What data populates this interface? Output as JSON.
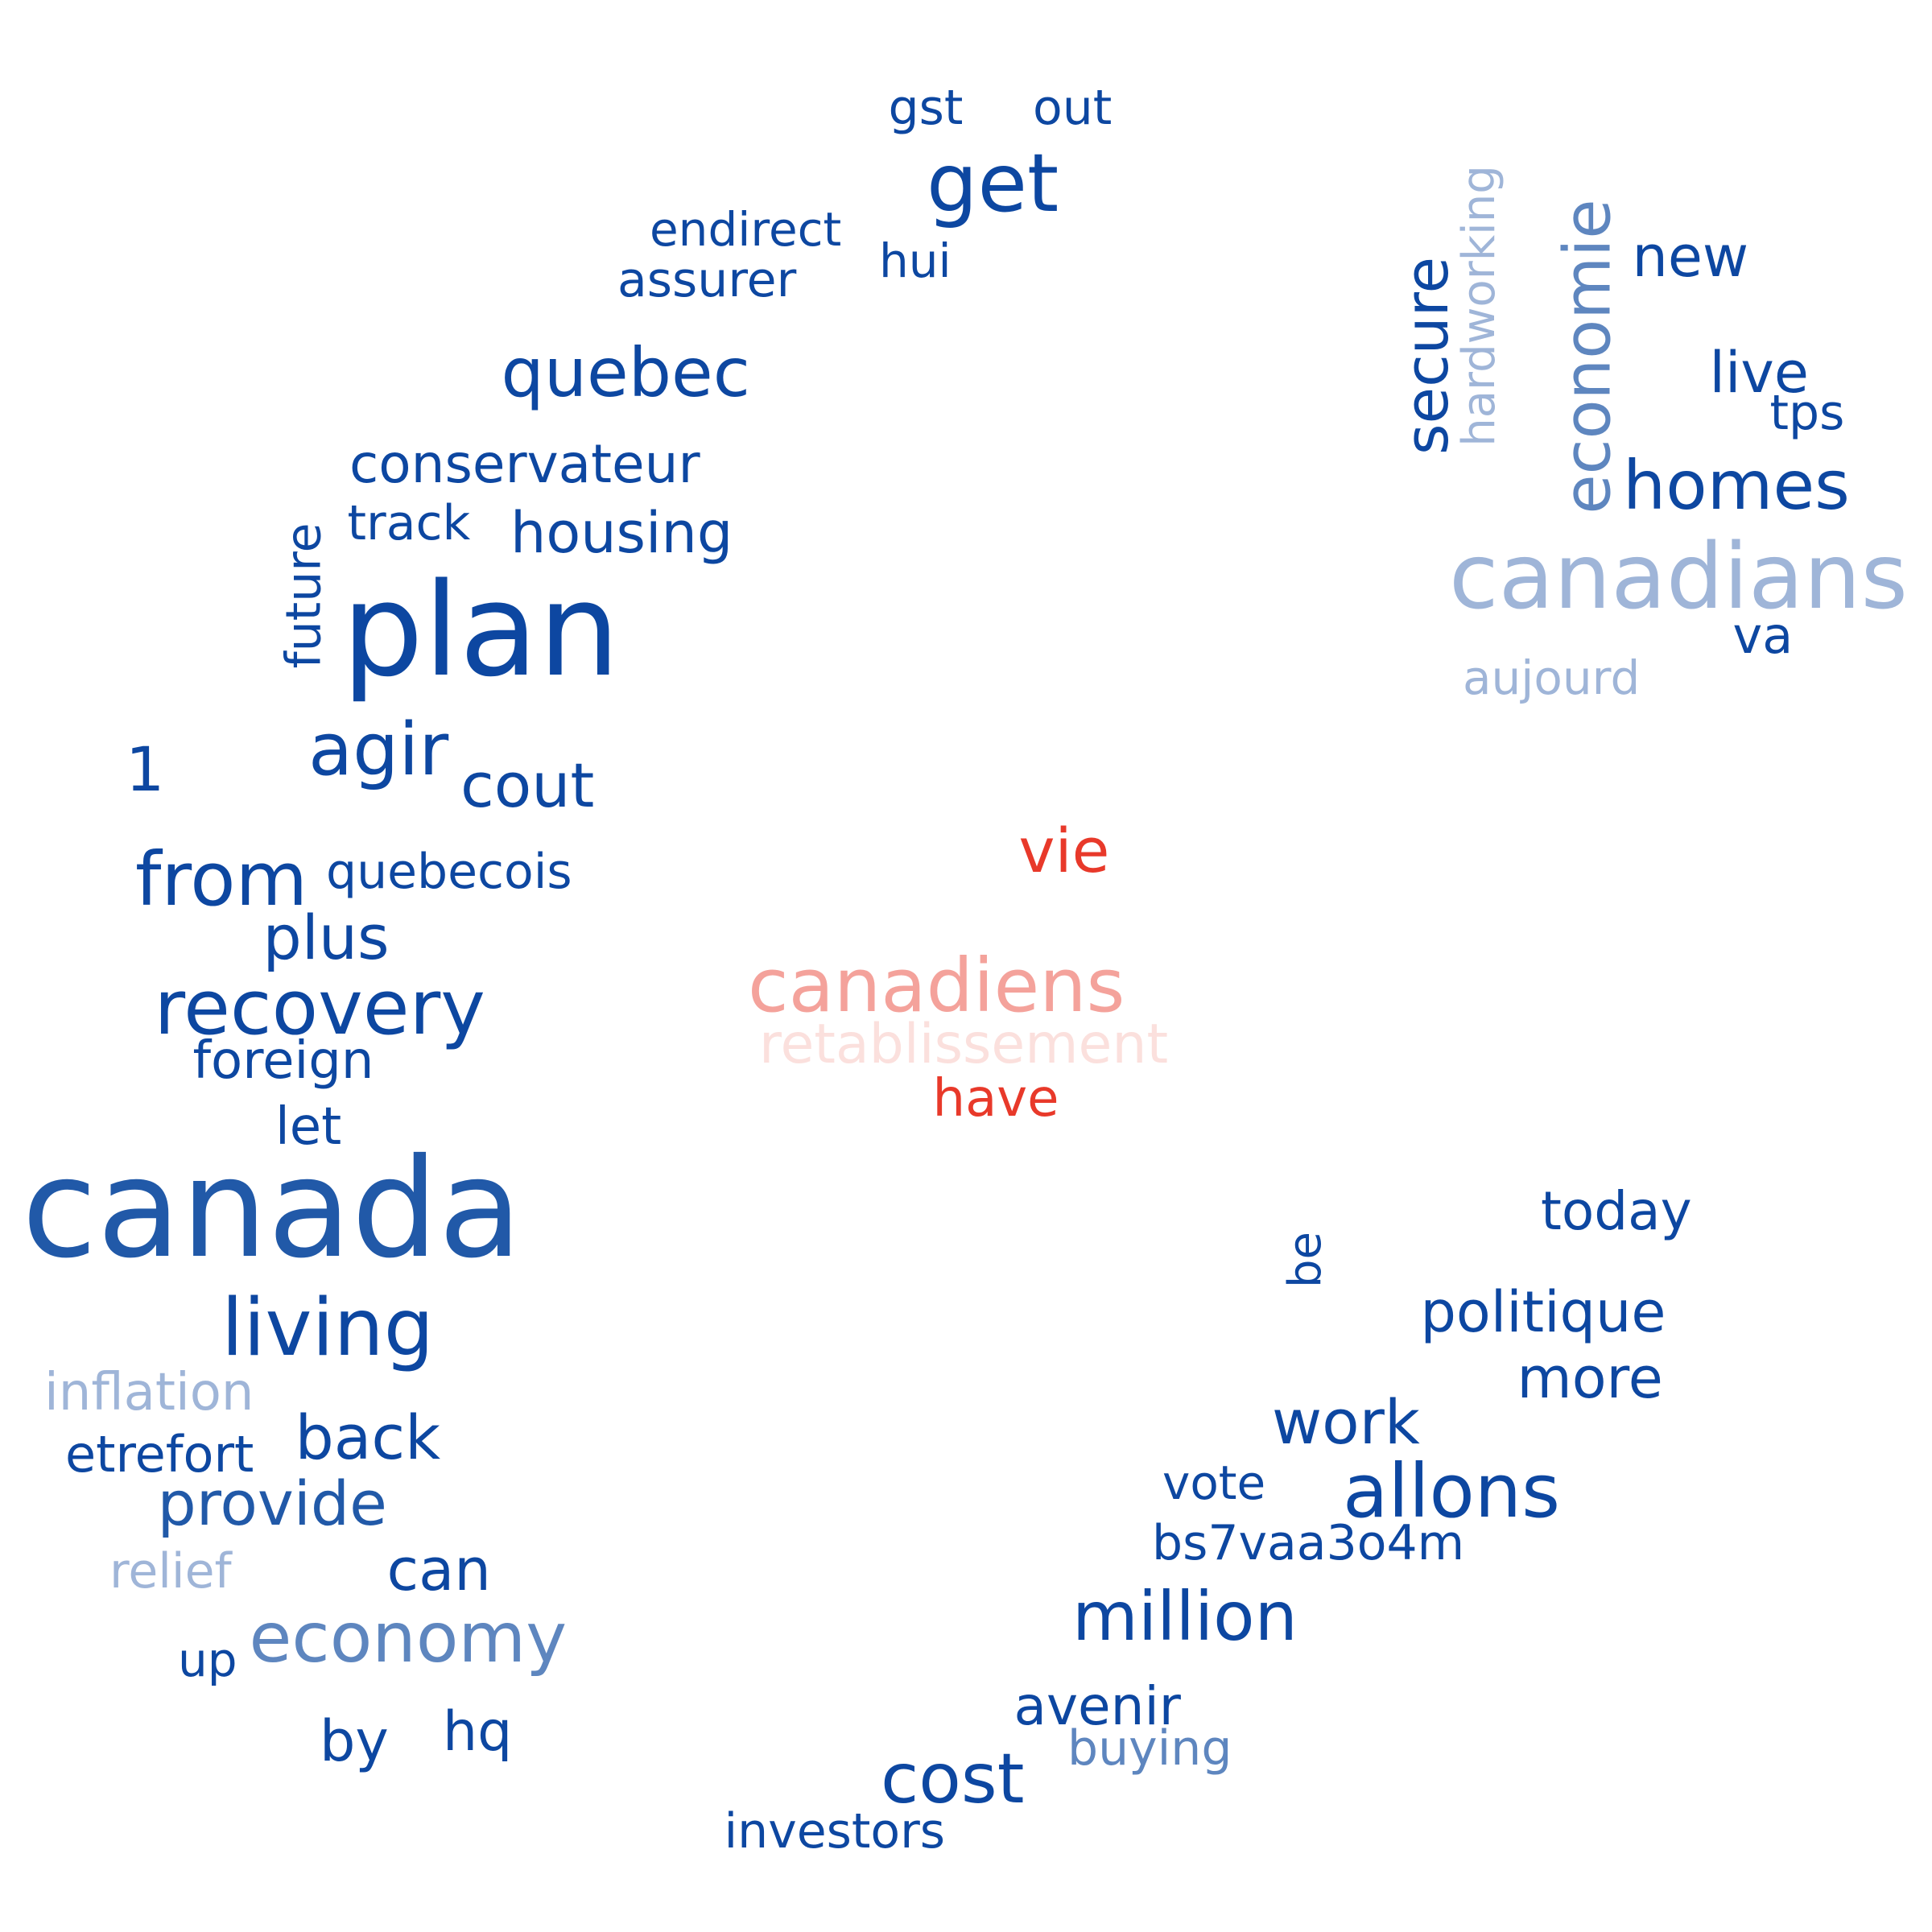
{
  "colors": {
    "blue_dark": "#0d47a1",
    "blue_mid": "#2159a8",
    "blue_soft": "#5e86bf",
    "blue_light": "#9fb5d8",
    "red": "#e8392a",
    "salmon": "#f4a29b",
    "pink_light": "#fbe0dd"
  },
  "words": [
    {
      "text": "gst",
      "color": "blue_dark"
    },
    {
      "text": "out",
      "color": "blue_dark"
    },
    {
      "text": "get",
      "color": "blue_dark"
    },
    {
      "text": "endirect",
      "color": "blue_dark"
    },
    {
      "text": "hui",
      "color": "blue_dark"
    },
    {
      "text": "assurer",
      "color": "blue_dark"
    },
    {
      "text": "quebec",
      "color": "blue_dark"
    },
    {
      "text": "conservateur",
      "color": "blue_dark"
    },
    {
      "text": "track",
      "color": "blue_dark"
    },
    {
      "text": "housing",
      "color": "blue_dark"
    },
    {
      "text": "future",
      "color": "blue_dark"
    },
    {
      "text": "plan",
      "color": "blue_dark"
    },
    {
      "text": "1",
      "color": "blue_dark"
    },
    {
      "text": "agir",
      "color": "blue_dark"
    },
    {
      "text": "cout",
      "color": "blue_dark"
    },
    {
      "text": "from",
      "color": "blue_dark"
    },
    {
      "text": "quebecois",
      "color": "blue_dark"
    },
    {
      "text": "plus",
      "color": "blue_dark"
    },
    {
      "text": "recovery",
      "color": "blue_dark"
    },
    {
      "text": "foreign",
      "color": "blue_dark"
    },
    {
      "text": "let",
      "color": "blue_dark"
    },
    {
      "text": "canada",
      "color": "blue_mid"
    },
    {
      "text": "living",
      "color": "blue_dark"
    },
    {
      "text": "inflation",
      "color": "blue_light"
    },
    {
      "text": "etrefort",
      "color": "blue_dark"
    },
    {
      "text": "back",
      "color": "blue_dark"
    },
    {
      "text": "provide",
      "color": "blue_mid"
    },
    {
      "text": "relief",
      "color": "blue_light"
    },
    {
      "text": "can",
      "color": "blue_dark"
    },
    {
      "text": "economy",
      "color": "blue_soft"
    },
    {
      "text": "up",
      "color": "blue_dark"
    },
    {
      "text": "by",
      "color": "blue_dark"
    },
    {
      "text": "hq",
      "color": "blue_dark"
    },
    {
      "text": "vie",
      "color": "red"
    },
    {
      "text": "canadiens",
      "color": "salmon"
    },
    {
      "text": "retablissement",
      "color": "pink_light"
    },
    {
      "text": "have",
      "color": "red"
    },
    {
      "text": "secure",
      "color": "blue_dark"
    },
    {
      "text": "hardworking",
      "color": "blue_light"
    },
    {
      "text": "economie",
      "color": "blue_soft"
    },
    {
      "text": "new",
      "color": "blue_dark"
    },
    {
      "text": "live",
      "color": "blue_dark"
    },
    {
      "text": "tps",
      "color": "blue_dark"
    },
    {
      "text": "homes",
      "color": "blue_dark"
    },
    {
      "text": "canadians",
      "color": "blue_light"
    },
    {
      "text": "va",
      "color": "blue_dark"
    },
    {
      "text": "aujourd",
      "color": "blue_light"
    },
    {
      "text": "today",
      "color": "blue_dark"
    },
    {
      "text": "be",
      "color": "blue_dark"
    },
    {
      "text": "politique",
      "color": "blue_dark"
    },
    {
      "text": "more",
      "color": "blue_dark"
    },
    {
      "text": "work",
      "color": "blue_dark"
    },
    {
      "text": "vote",
      "color": "blue_dark"
    },
    {
      "text": "allons",
      "color": "blue_dark"
    },
    {
      "text": "bs7vaa3o4m",
      "color": "blue_dark"
    },
    {
      "text": "million",
      "color": "blue_dark"
    },
    {
      "text": "avenir",
      "color": "blue_dark"
    },
    {
      "text": "buying",
      "color": "blue_soft"
    },
    {
      "text": "cost",
      "color": "blue_dark"
    },
    {
      "text": "investors",
      "color": "blue_dark"
    }
  ]
}
